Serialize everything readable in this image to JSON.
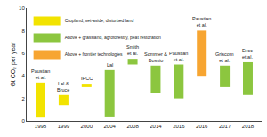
{
  "chart_data": {
    "type": "range_bar",
    "y_label": "Gt CO₂ per year",
    "categories": [
      "1998",
      "1999",
      "2000",
      "2004",
      "2008",
      "2014",
      "2016",
      "2016",
      "2017",
      "2018"
    ],
    "annotations": [
      "Paustian et al.",
      "Lal & Bruce",
      "IPCC",
      "Lal",
      "Smith et al.",
      "Sommer & Bossio",
      "Paustian et al.",
      "Paustian et al.",
      "Griscom et al.",
      "Fuss et al."
    ],
    "ylim": [
      0,
      10
    ],
    "yticks": [
      0,
      2,
      4,
      6,
      8,
      10
    ],
    "grid": false,
    "legend": "upper left",
    "series": [
      {
        "name": "Cropland, set-aside, disturbed land",
        "color": "#f2e300",
        "low": [
          0.3,
          1.4,
          3.0,
          null,
          null,
          null,
          null,
          null,
          null,
          null
        ],
        "high": [
          3.4,
          2.3,
          3.3,
          null,
          null,
          null,
          null,
          null,
          null,
          null
        ]
      },
      {
        "name": "Above + grassland, agroforestry, peat restoration",
        "color": "#8cc63f",
        "low": [
          null,
          null,
          null,
          0.4,
          5.0,
          2.5,
          2.0,
          null,
          3.0,
          2.3
        ],
        "high": [
          null,
          null,
          null,
          4.5,
          5.5,
          4.9,
          5.0,
          null,
          4.9,
          5.2
        ]
      },
      {
        "name": "Above + frontier technologies",
        "color": "#f7a531",
        "low": [
          null,
          null,
          null,
          null,
          null,
          null,
          null,
          4.0,
          null,
          null
        ],
        "high": [
          null,
          null,
          null,
          null,
          null,
          null,
          null,
          8.0,
          null,
          null
        ]
      }
    ]
  }
}
